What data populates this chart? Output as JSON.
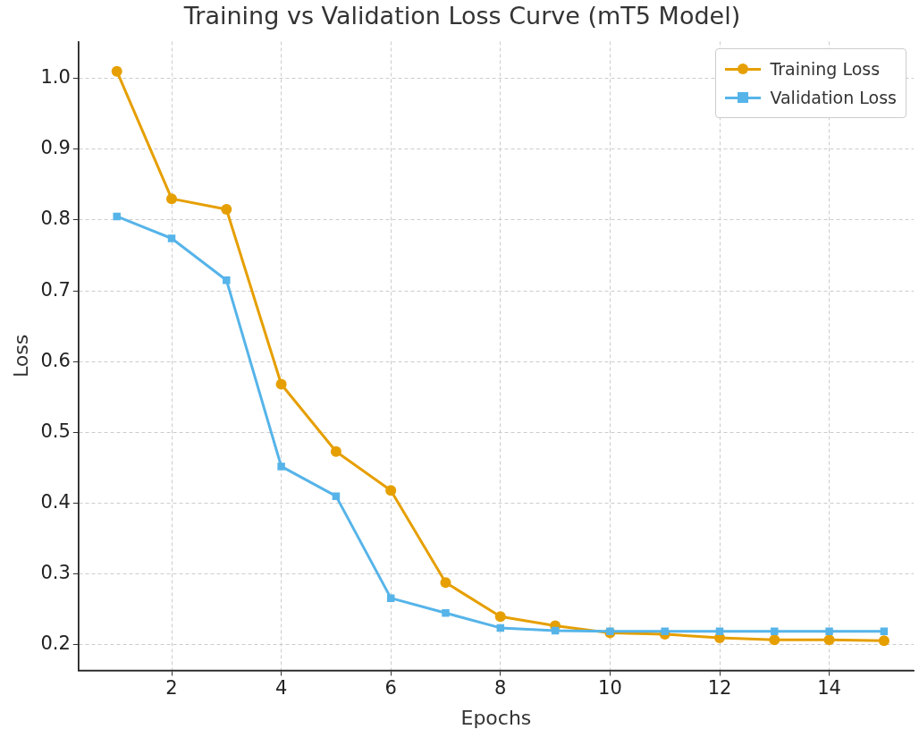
{
  "chart_data": {
    "type": "line",
    "title": "Training vs Validation Loss Curve (mT5 Model)",
    "xlabel": "Epochs",
    "ylabel": "Loss",
    "x": [
      1,
      2,
      3,
      4,
      5,
      6,
      7,
      8,
      9,
      10,
      11,
      12,
      13,
      14,
      15
    ],
    "series": [
      {
        "name": "Training Loss",
        "color": "#e69f00",
        "marker": "circle",
        "values": [
          1.01,
          0.83,
          0.815,
          0.568,
          0.473,
          0.418,
          0.288,
          0.24,
          0.227,
          0.217,
          0.215,
          0.21,
          0.207,
          0.207,
          0.206
        ]
      },
      {
        "name": "Validation Loss",
        "color": "#56b4e9",
        "marker": "square",
        "values": [
          0.805,
          0.774,
          0.715,
          0.452,
          0.41,
          0.266,
          0.245,
          0.224,
          0.22,
          0.219,
          0.219,
          0.219,
          0.219,
          0.219,
          0.219
        ]
      }
    ],
    "xlim": [
      0.3,
      15.54
    ],
    "ylim": [
      0.164,
      1.052
    ],
    "xticks": [
      2,
      4,
      6,
      8,
      10,
      12,
      14
    ],
    "yticks": [
      0.2,
      0.3,
      0.4,
      0.5,
      0.6,
      0.7,
      0.8,
      0.9,
      {
        "value": 1.0,
        "label": "1.0"
      }
    ],
    "grid": true,
    "legend": "top right",
    "line_style": "solid"
  }
}
